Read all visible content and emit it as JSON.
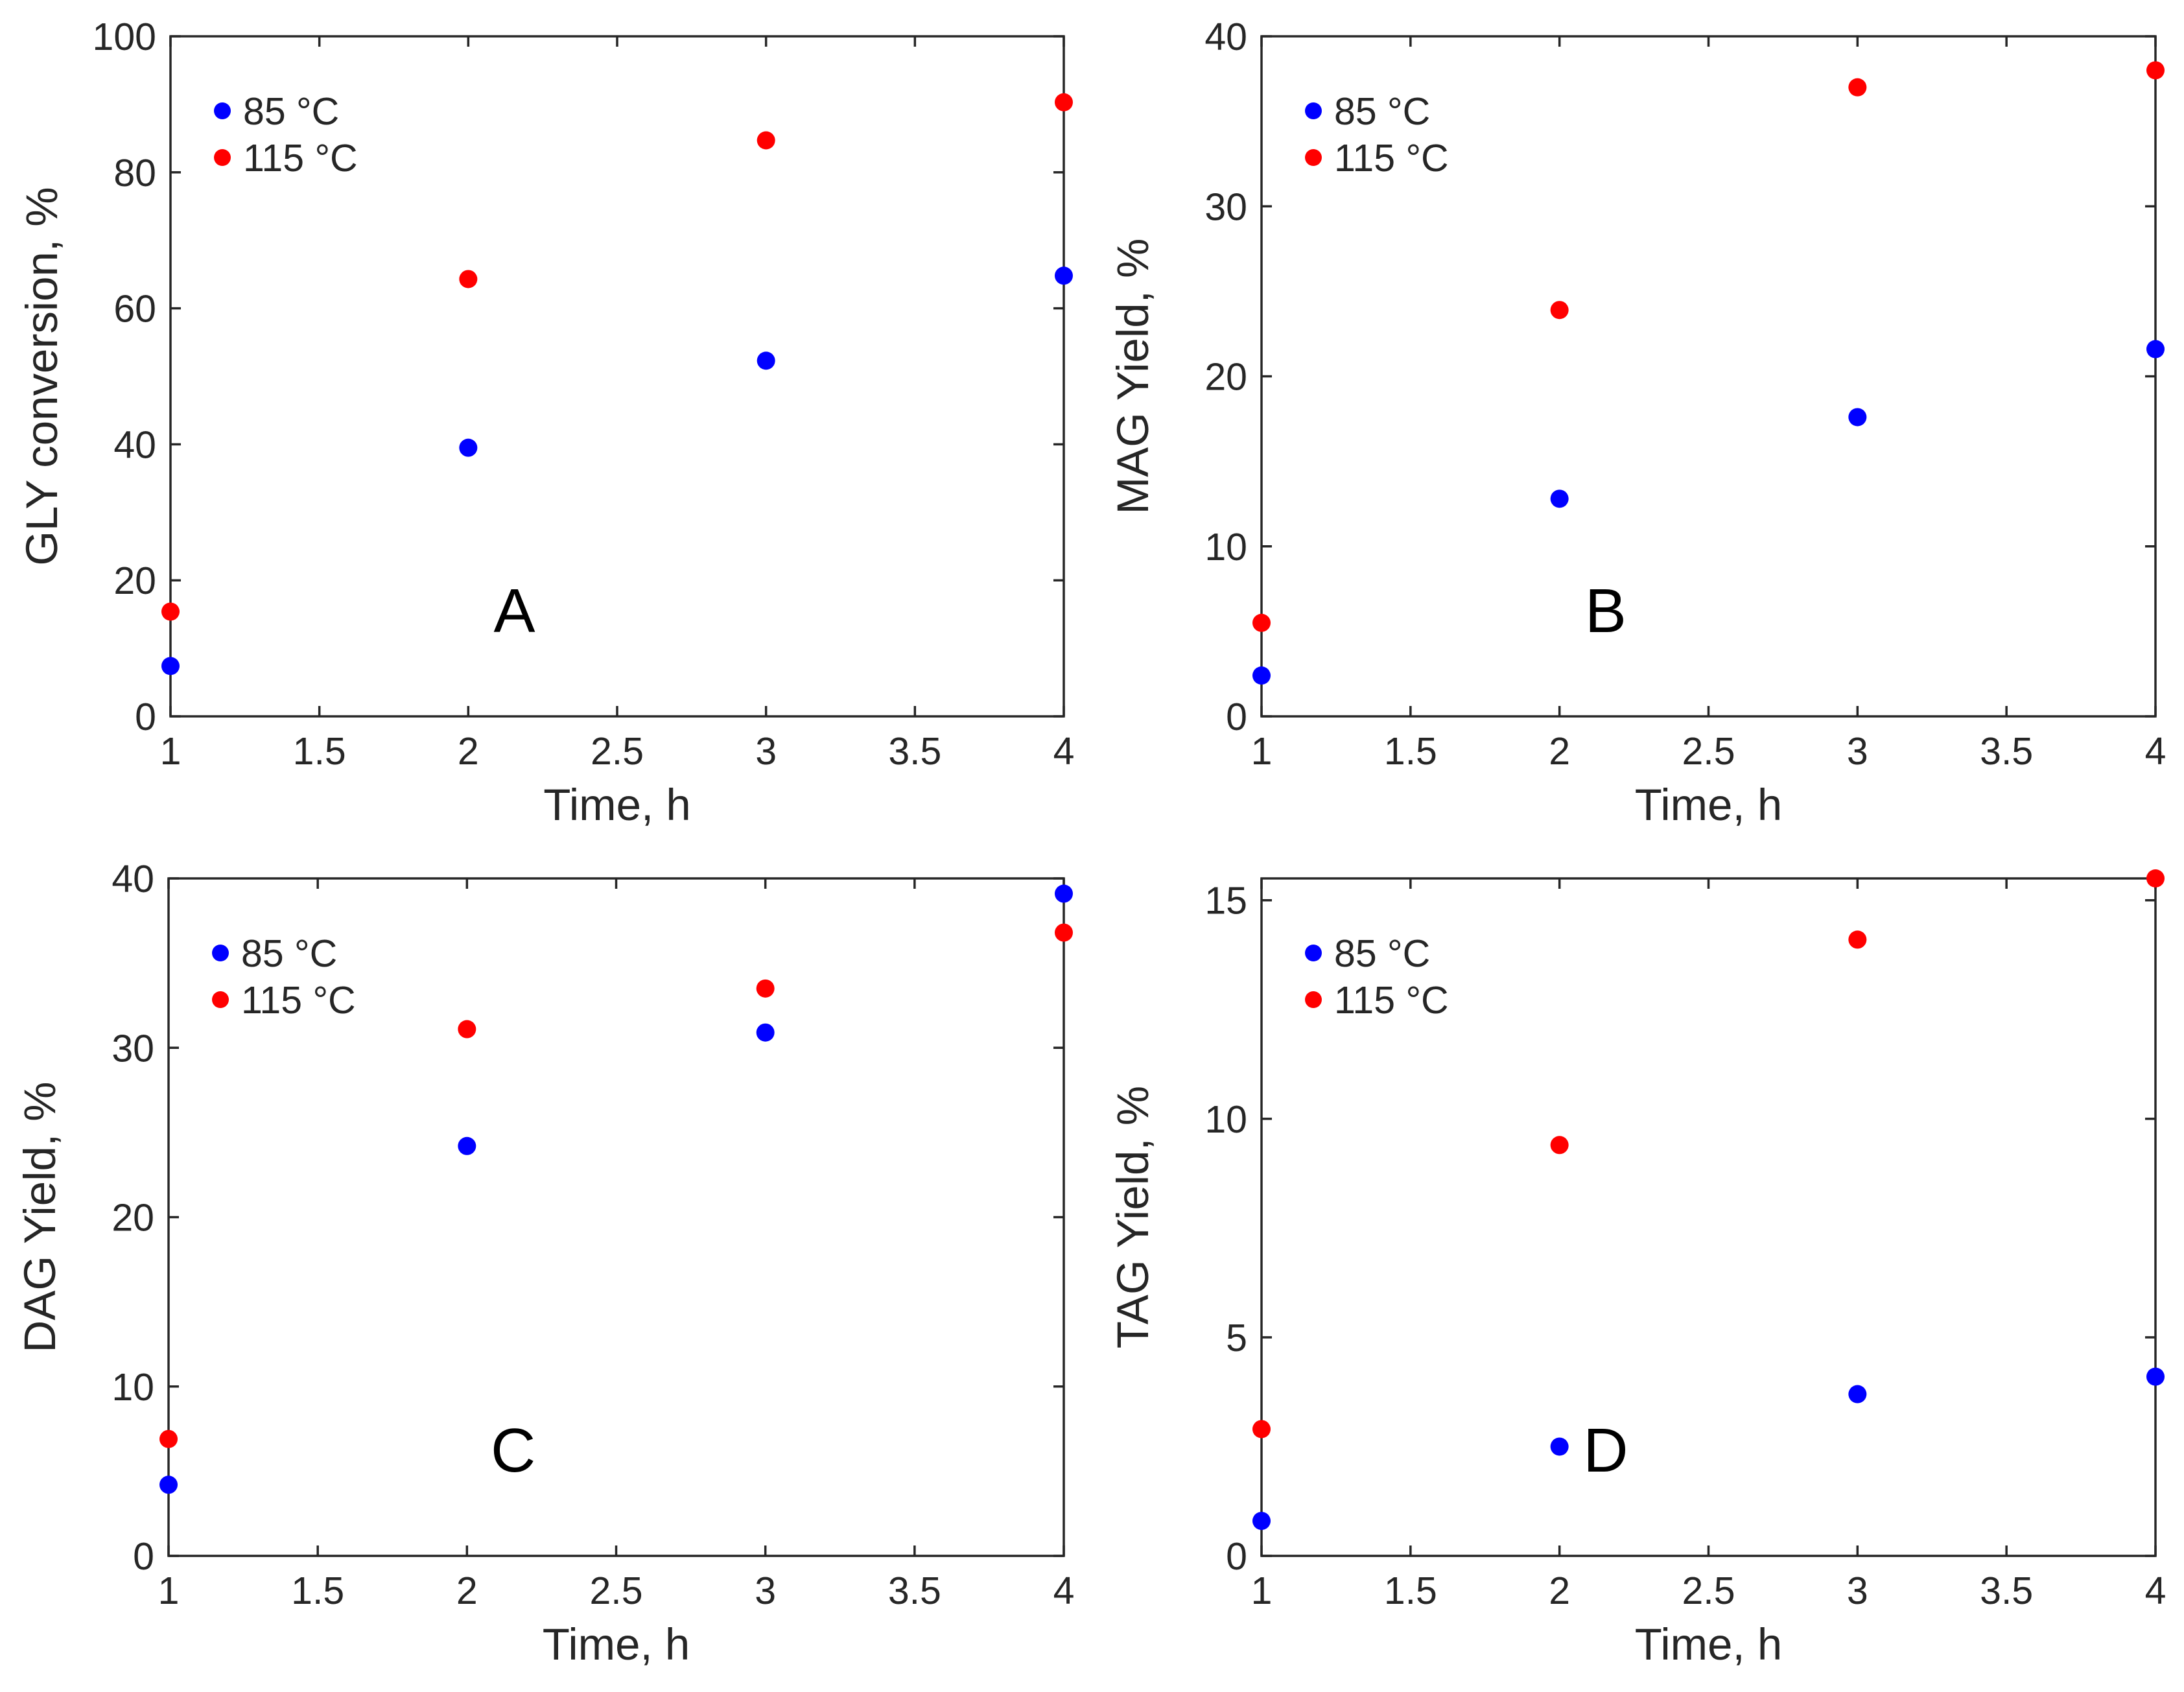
{
  "colors": {
    "series_85": "#0000ff",
    "series_115": "#ff0000",
    "axes": "#262626"
  },
  "chart_data": [
    {
      "type": "scatter",
      "panel": "A",
      "xlabel": "Time, h",
      "ylabel": "GLY conversion, %",
      "xlim": [
        1,
        4
      ],
      "ylim": [
        0,
        100
      ],
      "xticks": [
        1,
        1.5,
        2,
        2.5,
        3,
        3.5,
        4
      ],
      "yticks": [
        0,
        20,
        40,
        60,
        80,
        100
      ],
      "legend_position": "top-left",
      "series": [
        {
          "name": "85 °C",
          "color": "#0000ff",
          "x": [
            1,
            2,
            3,
            4
          ],
          "y": [
            7.4,
            39.5,
            52.3,
            64.8
          ]
        },
        {
          "name": "115 °C",
          "color": "#ff0000",
          "x": [
            1,
            2,
            3,
            4
          ],
          "y": [
            15.4,
            64.3,
            84.7,
            90.3
          ]
        }
      ]
    },
    {
      "type": "scatter",
      "panel": "B",
      "xlabel": "Time, h",
      "ylabel": "MAG Yield, %",
      "xlim": [
        1,
        4
      ],
      "ylim": [
        0,
        40
      ],
      "xticks": [
        1,
        1.5,
        2,
        2.5,
        3,
        3.5,
        4
      ],
      "yticks": [
        0,
        10,
        20,
        30,
        40
      ],
      "legend_position": "top-left",
      "series": [
        {
          "name": "85 °C",
          "color": "#0000ff",
          "x": [
            1,
            2,
            3,
            4
          ],
          "y": [
            2.4,
            12.8,
            17.6,
            21.6
          ]
        },
        {
          "name": "115 °C",
          "color": "#ff0000",
          "x": [
            1,
            2,
            3,
            4
          ],
          "y": [
            5.5,
            23.9,
            37.0,
            38.0
          ]
        }
      ]
    },
    {
      "type": "scatter",
      "panel": "C",
      "xlabel": "Time, h",
      "ylabel": "DAG Yield, %",
      "xlim": [
        1,
        4
      ],
      "ylim": [
        0,
        40
      ],
      "xticks": [
        1,
        1.5,
        2,
        2.5,
        3,
        3.5,
        4
      ],
      "yticks": [
        0,
        10,
        20,
        30,
        40
      ],
      "legend_position": "top-left",
      "series": [
        {
          "name": "85 °C",
          "color": "#0000ff",
          "x": [
            1,
            2,
            3,
            4
          ],
          "y": [
            4.2,
            24.2,
            30.9,
            39.1
          ]
        },
        {
          "name": "115 °C",
          "color": "#ff0000",
          "x": [
            1,
            2,
            3,
            4
          ],
          "y": [
            6.9,
            31.1,
            33.5,
            36.8
          ]
        }
      ]
    },
    {
      "type": "scatter",
      "panel": "D",
      "xlabel": "Time, h",
      "ylabel": "TAG Yield, %",
      "xlim": [
        1,
        4
      ],
      "ylim": [
        0,
        15.5
      ],
      "xticks": [
        1,
        1.5,
        2,
        2.5,
        3,
        3.5,
        4
      ],
      "yticks": [
        0,
        5,
        10,
        15
      ],
      "legend_position": "top-left",
      "series": [
        {
          "name": "85 °C",
          "color": "#0000ff",
          "x": [
            1,
            2,
            3,
            4
          ],
          "y": [
            0.8,
            2.5,
            3.7,
            4.1
          ]
        },
        {
          "name": "115 °C",
          "color": "#ff0000",
          "x": [
            1,
            2,
            3,
            4
          ],
          "y": [
            2.9,
            9.4,
            14.1,
            15.5
          ]
        }
      ]
    }
  ]
}
